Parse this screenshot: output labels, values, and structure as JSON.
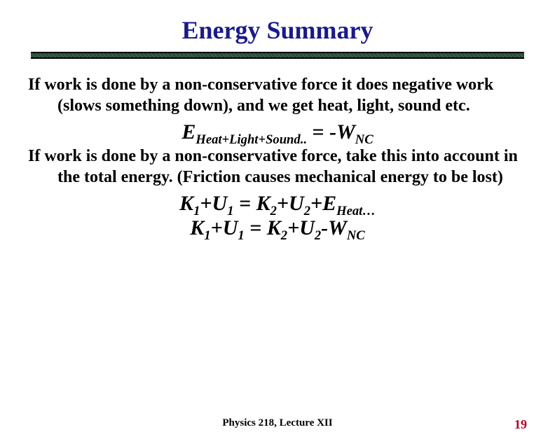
{
  "title": {
    "text": "Energy Summary",
    "color": "#1a1a8a",
    "fontsize": 36
  },
  "rule": {
    "bar_color": "#2a4a3a",
    "line_color": "#000000"
  },
  "body": {
    "fontsize": 24,
    "para1": "If work is done by a non-conservative force it does negative work (slows something down), and we get heat, light, sound etc.",
    "para2": "If work is done by a non-conservative force, take this into account in the total energy.  (Friction causes mechanical energy to be lost)"
  },
  "equations": {
    "fontsize_main": 30,
    "fontsize_block": 30,
    "eq1": {
      "E": "E",
      "E_sub": "Heat+Light+Sound..",
      "eq": " = ",
      "rhs_prefix": "-W",
      "rhs_sub": "NC"
    },
    "eq2": {
      "K1": "K",
      "K1_sub": "1",
      "plus1": "+",
      "U1": "U",
      "U1_sub": "1",
      "eq": " = ",
      "K2": "K",
      "K2_sub": "2",
      "plus2": "+",
      "U2": "U",
      "U2_sub": "2",
      "plus3": "+",
      "E": "E",
      "E_sub": "Heat…"
    },
    "eq3": {
      "K1": "K",
      "K1_sub": "1",
      "plus1": "+",
      "U1": "U",
      "U1_sub": "1",
      "eq": " = ",
      "K2": "K",
      "K2_sub": "2",
      "plus2": "+",
      "U2": "U",
      "U2_sub": "2",
      "minus": "-",
      "W": "W",
      "W_sub": "NC"
    }
  },
  "footer": {
    "center": "Physics 218, Lecture XII",
    "center_fontsize": 15,
    "page": "19",
    "page_fontsize": 18,
    "page_color": "#b00020"
  }
}
